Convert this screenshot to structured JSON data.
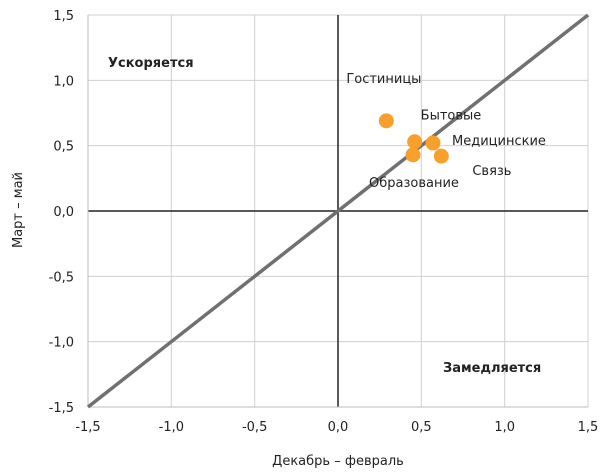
{
  "chart_data": {
    "type": "scatter",
    "xlabel": "Декабрь – февраль",
    "ylabel": "Март – май",
    "xlim": [
      -1.5,
      1.5
    ],
    "ylim": [
      -1.5,
      1.5
    ],
    "x_ticks": [
      "-1,5",
      "-1,0",
      "-0,5",
      "0,0",
      "0,5",
      "1,0",
      "1,5"
    ],
    "y_ticks": [
      "1,5",
      "1,0",
      "0,5",
      "0,0",
      "-0,5",
      "-1,0",
      "-1,5"
    ],
    "grid": true,
    "diagonal_line": true,
    "colors": {
      "points": "#f7a12c",
      "diagonal": "#707070",
      "grid": "#d0d0d0",
      "axes": "#222222"
    },
    "region_labels": {
      "top_left": "Ускоряется",
      "bottom_right": "Замедляется"
    },
    "points": [
      {
        "label": "Гостиницы",
        "x": 0.29,
        "y": 0.69
      },
      {
        "label": "Бытовые",
        "x": 0.46,
        "y": 0.53
      },
      {
        "label": "Медицинские",
        "x": 0.57,
        "y": 0.52
      },
      {
        "label": "Связь",
        "x": 0.62,
        "y": 0.42
      },
      {
        "label": "Образование",
        "x": 0.45,
        "y": 0.43
      }
    ]
  }
}
